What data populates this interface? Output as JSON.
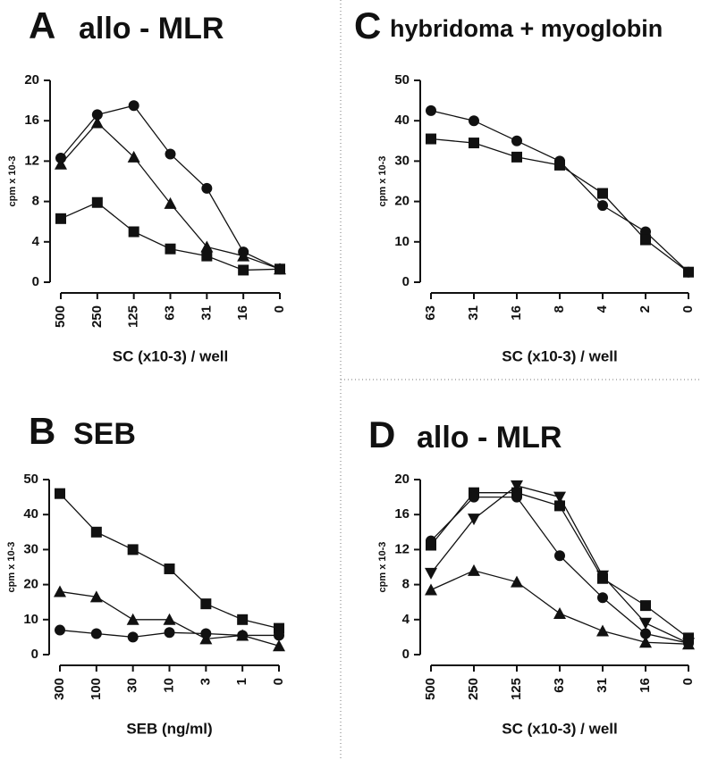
{
  "chart_data": [
    {
      "type": "line",
      "panel": "A",
      "title": "allo - MLR",
      "ylabel": "cpm x 10-3",
      "xlabel": "SC (x10-3) / well",
      "categories": [
        "500",
        "250",
        "125",
        "63",
        "31",
        "16",
        "0"
      ],
      "ylim": [
        0,
        20
      ],
      "yticks": [
        0,
        4,
        8,
        12,
        16,
        20
      ],
      "series": [
        {
          "marker": "circle",
          "color": "#111111",
          "values": [
            12.3,
            16.6,
            17.5,
            12.7,
            9.3,
            3.0,
            1.3
          ]
        },
        {
          "marker": "triangle",
          "color": "#111111",
          "values": [
            11.7,
            15.8,
            12.4,
            7.8,
            3.5,
            2.6,
            1.3
          ]
        },
        {
          "marker": "square",
          "color": "#111111",
          "values": [
            6.3,
            7.9,
            5.0,
            3.3,
            2.6,
            1.2,
            1.3
          ]
        }
      ]
    },
    {
      "type": "line",
      "panel": "B",
      "title": "SEB",
      "ylabel": "cpm x 10-3",
      "xlabel": "SEB (ng/ml)",
      "categories": [
        "300",
        "100",
        "30",
        "10",
        "3",
        "1",
        "0"
      ],
      "ylim": [
        0,
        50
      ],
      "yticks": [
        0,
        10,
        20,
        30,
        40,
        50
      ],
      "series": [
        {
          "marker": "square",
          "color": "#111111",
          "values": [
            46,
            35,
            30,
            24.5,
            14.5,
            10,
            7.5
          ]
        },
        {
          "marker": "triangle",
          "color": "#111111",
          "values": [
            18,
            16.5,
            10,
            10,
            4.5,
            5.5,
            2.5
          ]
        },
        {
          "marker": "circle",
          "color": "#111111",
          "values": [
            7,
            6,
            5,
            6.3,
            6,
            5.5,
            5.5
          ]
        }
      ]
    },
    {
      "type": "line",
      "panel": "C",
      "title": "hybridoma + myoglobin",
      "ylabel": "cpm x 10-3",
      "xlabel": "SC (x10-3) / well",
      "categories": [
        "63",
        "31",
        "16",
        "8",
        "4",
        "2",
        "0"
      ],
      "ylim": [
        0,
        50
      ],
      "yticks": [
        0,
        10,
        20,
        30,
        40,
        50
      ],
      "series": [
        {
          "marker": "circle",
          "color": "#111111",
          "values": [
            42.5,
            40,
            35,
            30,
            19,
            12.5,
            2.5
          ]
        },
        {
          "marker": "square",
          "color": "#111111",
          "values": [
            35.5,
            34.5,
            31,
            29,
            22,
            10.5,
            2.5
          ]
        }
      ]
    },
    {
      "type": "line",
      "panel": "D",
      "title": "allo - MLR",
      "ylabel": "cpm x 10-3",
      "xlabel": "SC (x10-3) / well",
      "categories": [
        "500",
        "250",
        "125",
        "63",
        "31",
        "16",
        "0"
      ],
      "ylim": [
        0,
        20
      ],
      "yticks": [
        0,
        4,
        8,
        12,
        16,
        20
      ],
      "series": [
        {
          "marker": "square",
          "color": "#111111",
          "values": [
            12.5,
            18.5,
            18.5,
            17,
            8.7,
            5.6,
            1.9
          ]
        },
        {
          "marker": "circle",
          "color": "#111111",
          "values": [
            13,
            18,
            18,
            11.3,
            6.5,
            2.4,
            1.3
          ]
        },
        {
          "marker": "triangle-down",
          "color": "#111111",
          "values": [
            9.3,
            15.5,
            19.3,
            18,
            9,
            3.6,
            1.3
          ]
        },
        {
          "marker": "triangle",
          "color": "#111111",
          "values": [
            7.4,
            9.6,
            8.3,
            4.7,
            2.7,
            1.4,
            1.2
          ]
        }
      ]
    }
  ]
}
